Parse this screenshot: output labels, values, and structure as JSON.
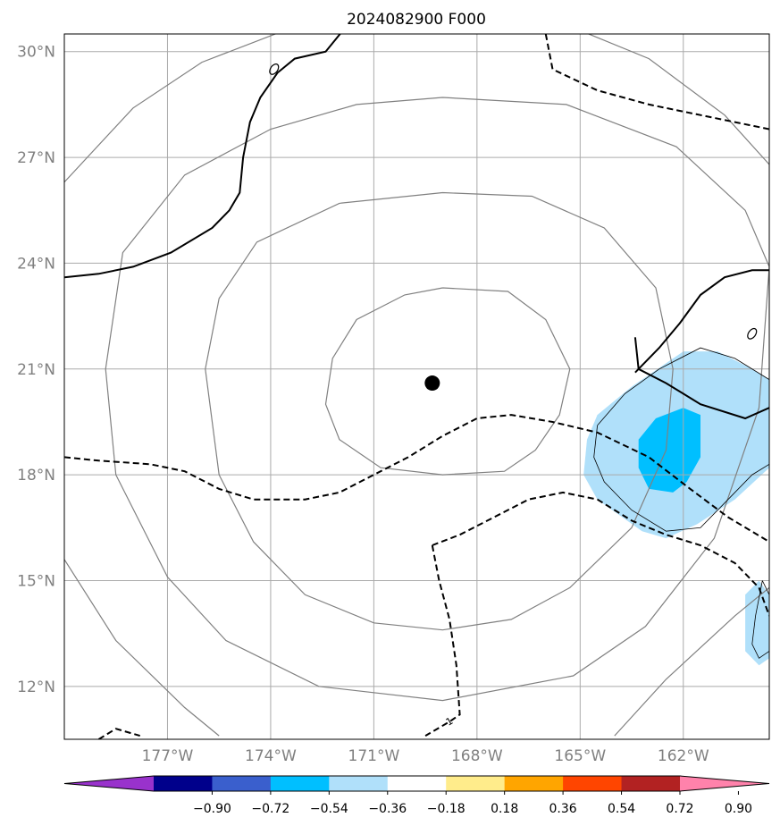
{
  "chart_data": {
    "type": "map-contour",
    "title": "2024082900 F000",
    "lon_range": [
      -180.0,
      -159.5
    ],
    "lat_range": [
      10.5,
      30.5
    ],
    "grid": true,
    "x_ticks": [
      {
        "value": -177,
        "label": "177°W"
      },
      {
        "value": -174,
        "label": "174°W"
      },
      {
        "value": -171,
        "label": "171°W"
      },
      {
        "value": -168,
        "label": "168°W"
      },
      {
        "value": -165,
        "label": "165°W"
      },
      {
        "value": -162,
        "label": "162°W"
      }
    ],
    "y_ticks": [
      {
        "value": 12,
        "label": "12°N"
      },
      {
        "value": 15,
        "label": "15°N"
      },
      {
        "value": 18,
        "label": "18°N"
      },
      {
        "value": 21,
        "label": "21°N"
      },
      {
        "value": 24,
        "label": "24°N"
      },
      {
        "value": 27,
        "label": "27°N"
      },
      {
        "value": 30,
        "label": "30°N"
      }
    ],
    "center": {
      "lon": -169.3,
      "lat": 20.6
    },
    "range_rings": [
      [
        [
          -169.0,
          23.3
        ],
        [
          -167.1,
          23.2
        ],
        [
          -166.0,
          22.4
        ],
        [
          -165.3,
          21.0
        ],
        [
          -165.6,
          19.7
        ],
        [
          -166.3,
          18.7
        ],
        [
          -167.2,
          18.1
        ],
        [
          -169.0,
          18.0
        ],
        [
          -170.8,
          18.2
        ],
        [
          -172.0,
          19.0
        ],
        [
          -172.4,
          20.0
        ],
        [
          -172.2,
          21.3
        ],
        [
          -171.5,
          22.4
        ],
        [
          -170.1,
          23.1
        ],
        [
          -169.0,
          23.3
        ]
      ],
      [
        [
          -169.0,
          26.0
        ],
        [
          -166.4,
          25.9
        ],
        [
          -164.3,
          25.0
        ],
        [
          -162.8,
          23.3
        ],
        [
          -162.3,
          21.0
        ],
        [
          -162.5,
          18.7
        ],
        [
          -163.5,
          16.5
        ],
        [
          -165.3,
          14.8
        ],
        [
          -167.0,
          13.9
        ],
        [
          -169.0,
          13.6
        ],
        [
          -171.0,
          13.8
        ],
        [
          -173.0,
          14.6
        ],
        [
          -174.5,
          16.1
        ],
        [
          -175.5,
          18.0
        ],
        [
          -175.9,
          21.0
        ],
        [
          -175.5,
          23.0
        ],
        [
          -174.4,
          24.6
        ],
        [
          -172.0,
          25.7
        ],
        [
          -169.0,
          26.0
        ]
      ],
      [
        [
          -169.0,
          28.7
        ],
        [
          -165.4,
          28.5
        ],
        [
          -162.2,
          27.3
        ],
        [
          -160.2,
          25.5
        ],
        [
          -159.5,
          23.9
        ],
        [
          -159.8,
          19.9
        ],
        [
          -161.1,
          16.2
        ],
        [
          -163.1,
          13.7
        ],
        [
          -165.2,
          12.3
        ],
        [
          -169.0,
          11.6
        ],
        [
          -172.6,
          12.0
        ],
        [
          -175.3,
          13.3
        ],
        [
          -177.0,
          15.1
        ],
        [
          -178.5,
          18.0
        ],
        [
          -178.8,
          21.0
        ],
        [
          -178.3,
          24.3
        ],
        [
          -176.5,
          26.5
        ],
        [
          -174.0,
          27.8
        ],
        [
          -171.5,
          28.5
        ],
        [
          -169.0,
          28.7
        ]
      ],
      [
        [
          -180.0,
          26.3
        ],
        [
          -178.0,
          28.4
        ],
        [
          -176.0,
          29.7
        ],
        [
          -173.6,
          30.6
        ]
      ],
      [
        [
          -165.0,
          30.6
        ],
        [
          -163.0,
          29.8
        ],
        [
          -160.8,
          28.2
        ],
        [
          -159.5,
          26.8
        ]
      ],
      [
        [
          -180.0,
          15.6
        ],
        [
          -178.5,
          13.3
        ],
        [
          -176.5,
          11.4
        ],
        [
          -175.5,
          10.6
        ]
      ],
      [
        [
          -164.0,
          10.6
        ],
        [
          -162.5,
          12.2
        ],
        [
          -160.5,
          14.0
        ],
        [
          -159.5,
          14.8
        ]
      ]
    ],
    "solid_contours": [
      [
        [
          -180.0,
          23.6
        ],
        [
          -179.0,
          23.7
        ],
        [
          -178.0,
          23.9
        ],
        [
          -176.9,
          24.3
        ],
        [
          -175.7,
          25.0
        ],
        [
          -175.2,
          25.5
        ],
        [
          -174.9,
          26.0
        ],
        [
          -174.8,
          27.0
        ],
        [
          -174.6,
          28.0
        ],
        [
          -174.3,
          28.7
        ],
        [
          -173.8,
          29.4
        ],
        [
          -173.3,
          29.8
        ],
        [
          -172.4,
          30.0
        ],
        [
          -171.9,
          30.6
        ]
      ],
      [
        [
          -163.4,
          20.9
        ],
        [
          -162.7,
          21.6
        ],
        [
          -162.1,
          22.3
        ],
        [
          -161.5,
          23.1
        ],
        [
          -160.8,
          23.6
        ],
        [
          -160.0,
          23.8
        ],
        [
          -159.5,
          23.8
        ]
      ],
      [
        [
          -163.4,
          21.9
        ],
        [
          -163.3,
          21.0
        ]
      ],
      [
        [
          -163.3,
          21.0
        ],
        [
          -162.5,
          20.6
        ],
        [
          -161.5,
          20.0
        ],
        [
          -160.2,
          19.6
        ],
        [
          -159.5,
          19.9
        ]
      ]
    ],
    "dashed_contours": [
      [
        [
          -180.0,
          18.5
        ],
        [
          -179.0,
          18.4
        ],
        [
          -177.5,
          18.3
        ],
        [
          -176.5,
          18.1
        ],
        [
          -175.5,
          17.6
        ],
        [
          -174.5,
          17.3
        ],
        [
          -173.0,
          17.3
        ],
        [
          -172.0,
          17.5
        ],
        [
          -171.0,
          18.0
        ],
        [
          -170.0,
          18.5
        ],
        [
          -169.0,
          19.1
        ],
        [
          -168.0,
          19.6
        ],
        [
          -167.0,
          19.7
        ],
        [
          -165.8,
          19.5
        ],
        [
          -164.5,
          19.2
        ],
        [
          -163.0,
          18.5
        ],
        [
          -161.8,
          17.6
        ],
        [
          -160.7,
          16.8
        ],
        [
          -159.5,
          16.1
        ]
      ],
      [
        [
          -169.3,
          16.0
        ],
        [
          -168.5,
          16.3
        ],
        [
          -167.5,
          16.8
        ],
        [
          -166.5,
          17.3
        ],
        [
          -165.5,
          17.5
        ],
        [
          -164.5,
          17.3
        ],
        [
          -163.5,
          16.7
        ],
        [
          -162.5,
          16.3
        ],
        [
          -161.5,
          16.0
        ],
        [
          -160.5,
          15.5
        ],
        [
          -159.8,
          14.8
        ],
        [
          -159.5,
          14.0
        ]
      ],
      [
        [
          -169.3,
          16.0
        ],
        [
          -169.1,
          15.0
        ],
        [
          -168.8,
          13.9
        ],
        [
          -168.6,
          12.6
        ],
        [
          -168.5,
          11.2
        ],
        [
          -168.8,
          11.0
        ],
        [
          -169.5,
          10.6
        ]
      ],
      [
        [
          -179.0,
          10.5
        ],
        [
          -178.5,
          10.8
        ],
        [
          -177.8,
          10.6
        ]
      ],
      [
        [
          -166.0,
          30.5
        ],
        [
          -165.8,
          29.5
        ],
        [
          -164.5,
          28.9
        ],
        [
          -163.0,
          28.5
        ],
        [
          -162.0,
          28.3
        ],
        [
          -160.5,
          28.0
        ],
        [
          -159.5,
          27.8
        ]
      ]
    ],
    "contour_label": {
      "lon": -168.8,
      "lat": 10.9,
      "text": "-1"
    },
    "small_loops": [
      {
        "lon": -173.9,
        "lat": 29.5
      },
      {
        "lon": -160.0,
        "lat": 22.0
      }
    ],
    "fill_regions": [
      {
        "level": "-0.36 to -0.18",
        "color": "#b0e0fa",
        "points": [
          [
            -164.5,
            19.7
          ],
          [
            -163.5,
            20.5
          ],
          [
            -162.0,
            21.5
          ],
          [
            -161.0,
            21.5
          ],
          [
            -160.0,
            21.0
          ],
          [
            -159.5,
            20.7
          ],
          [
            -159.5,
            18.2
          ],
          [
            -160.5,
            17.3
          ],
          [
            -161.6,
            16.6
          ],
          [
            -162.5,
            16.2
          ],
          [
            -163.2,
            16.4
          ],
          [
            -164.5,
            17.3
          ],
          [
            -164.9,
            18.0
          ],
          [
            -164.8,
            19.0
          ],
          [
            -164.5,
            19.7
          ]
        ]
      },
      {
        "level": "-0.54 to -0.36",
        "color": "#00bfff",
        "points": [
          [
            -163.3,
            19.0
          ],
          [
            -162.8,
            19.6
          ],
          [
            -162.0,
            19.9
          ],
          [
            -161.5,
            19.7
          ],
          [
            -161.5,
            18.5
          ],
          [
            -161.9,
            17.8
          ],
          [
            -162.3,
            17.5
          ],
          [
            -163.0,
            17.6
          ],
          [
            -163.3,
            18.2
          ],
          [
            -163.3,
            19.0
          ]
        ]
      },
      {
        "level": "-0.36 to -0.18",
        "color": "#b0e0fa",
        "points": [
          [
            -160.2,
            14.6
          ],
          [
            -159.8,
            15.0
          ],
          [
            -159.5,
            14.6
          ],
          [
            -159.5,
            12.8
          ],
          [
            -159.8,
            12.6
          ],
          [
            -160.2,
            13.0
          ],
          [
            -160.2,
            14.6
          ]
        ]
      }
    ],
    "thin_contours": [
      [
        [
          -164.5,
          19.4
        ],
        [
          -163.7,
          20.3
        ],
        [
          -162.7,
          21.0
        ],
        [
          -161.5,
          21.6
        ],
        [
          -160.5,
          21.3
        ],
        [
          -159.5,
          20.7
        ]
      ],
      [
        [
          -164.5,
          19.4
        ],
        [
          -164.6,
          18.5
        ],
        [
          -164.3,
          17.8
        ],
        [
          -163.5,
          17.0
        ],
        [
          -162.5,
          16.4
        ],
        [
          -161.5,
          16.5
        ],
        [
          -160.8,
          17.2
        ],
        [
          -160.0,
          18.0
        ],
        [
          -159.5,
          18.3
        ]
      ],
      [
        [
          -159.7,
          15.0
        ],
        [
          -159.9,
          14.0
        ],
        [
          -160.0,
          13.2
        ],
        [
          -159.8,
          12.8
        ],
        [
          -159.5,
          13.0
        ]
      ],
      [
        [
          -159.7,
          15.0
        ],
        [
          -159.5,
          14.6
        ]
      ]
    ],
    "colorbar": {
      "colors": [
        "#9932cc",
        "#00008b",
        "#3a5fcd",
        "#00bfff",
        "#b0e0fa",
        "#ffffff",
        "#ffec8b",
        "#ffa500",
        "#ff4500",
        "#b22222",
        "#ff82ab"
      ],
      "tick_labels": [
        "−0.90",
        "−0.72",
        "−0.54",
        "−0.36",
        "−0.18",
        "0.18",
        "0.36",
        "0.54",
        "0.72",
        "0.90"
      ]
    }
  }
}
